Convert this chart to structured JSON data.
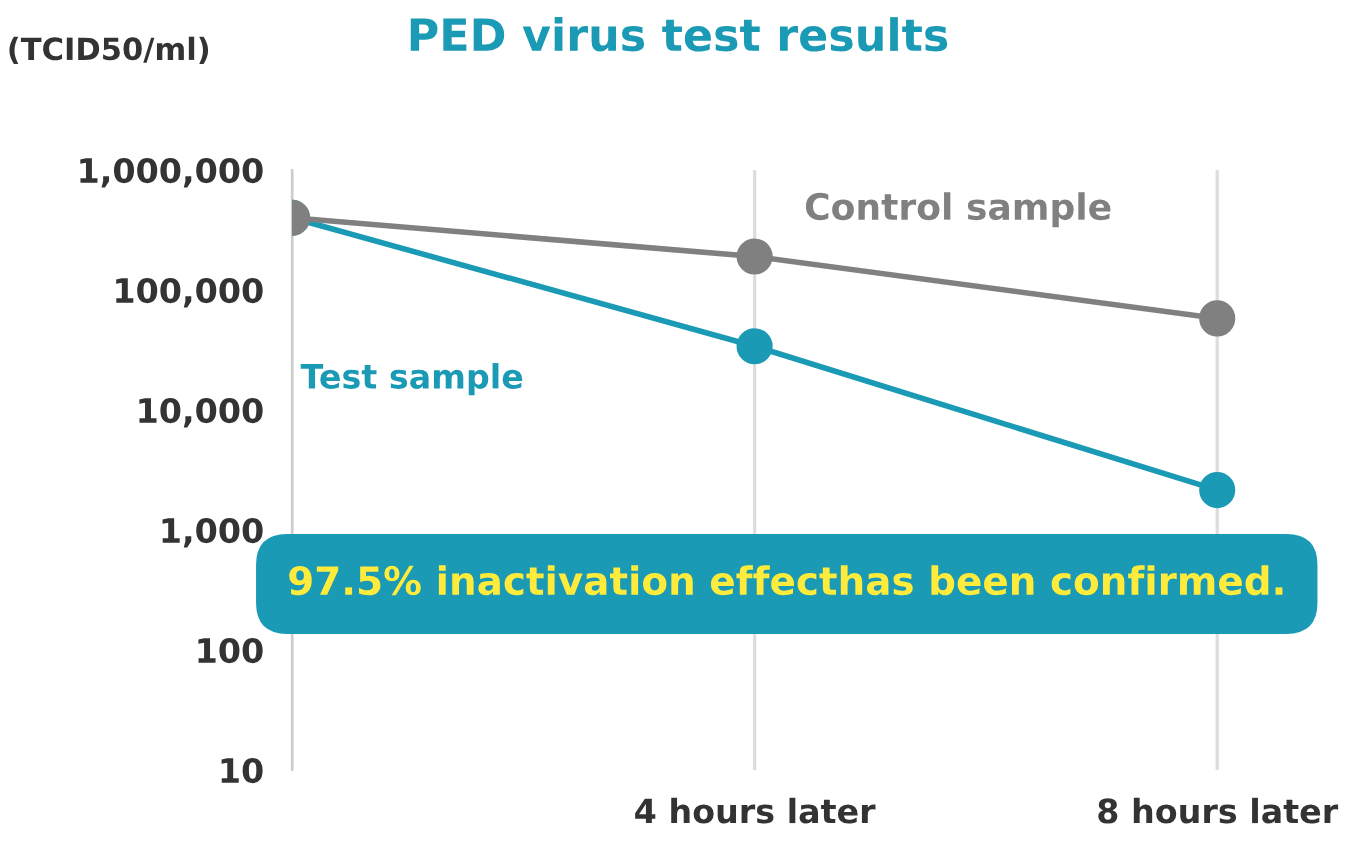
{
  "chart_data": {
    "type": "line",
    "title": "PED virus test results",
    "ylabel": "(TCID50/ml)",
    "categories": [
      null,
      "4 hours later",
      "8 hours later"
    ],
    "series": [
      {
        "name": "Control sample",
        "color": "#808080",
        "values": [
          400000,
          190000,
          58000
        ]
      },
      {
        "name": "Test sample",
        "color": "#1a9ab5",
        "values": [
          400000,
          34000,
          2150
        ]
      }
    ],
    "log": true,
    "ylim": [
      10,
      1000000
    ],
    "yticks": [
      10,
      100,
      {
        "value": 1000,
        "label": "1,000"
      },
      {
        "value": 10000,
        "label": "10,000"
      },
      {
        "value": 100000,
        "label": "100,000"
      },
      {
        "value": 1000000,
        "label": "1,000,000"
      }
    ],
    "grid": "x",
    "marker": "circle",
    "line_style": "solid",
    "legend": false,
    "annotations": [
      "97.5% inactivation effecthas been confirmed."
    ]
  }
}
